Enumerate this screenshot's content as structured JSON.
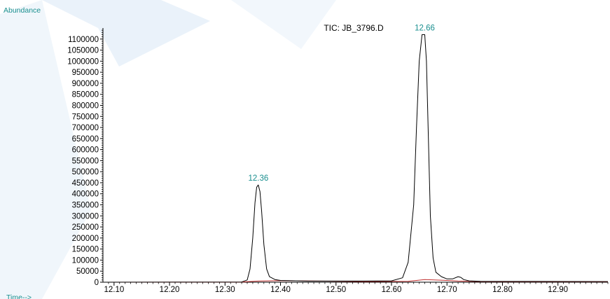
{
  "chart_data": {
    "type": "line",
    "title": "TIC: JB_3796.D",
    "ylabel": "Abundance",
    "xlabel": "Time-->",
    "xlim": [
      12.08,
      12.99
    ],
    "ylim": [
      0,
      1150000
    ],
    "x_ticks": [
      "12.10",
      "12.20",
      "12.30",
      "12.40",
      "12.50",
      "12.60",
      "12.70",
      "12.80",
      "12.90"
    ],
    "y_ticks": [
      "0",
      "50000",
      "100000",
      "150000",
      "200000",
      "250000",
      "300000",
      "350000",
      "400000",
      "450000",
      "500000",
      "550000",
      "600000",
      "650000",
      "700000",
      "750000",
      "800000",
      "850000",
      "900000",
      "950000",
      "1000000",
      "1050000",
      "1100000"
    ],
    "series": [
      {
        "color": "#000000",
        "x": [
          12.08,
          12.33,
          12.34,
          12.345,
          12.35,
          12.354,
          12.357,
          12.36,
          12.363,
          12.366,
          12.37,
          12.375,
          12.38,
          12.39,
          12.4,
          12.45,
          12.55,
          12.6,
          12.62,
          12.63,
          12.64,
          12.645,
          12.65,
          12.655,
          12.66,
          12.663,
          12.666,
          12.67,
          12.675,
          12.68,
          12.69,
          12.7,
          12.71,
          12.72,
          12.725,
          12.73,
          12.74,
          12.76,
          12.99
        ],
        "y": [
          0,
          1000,
          10000,
          60000,
          200000,
          360000,
          430000,
          440000,
          410000,
          320000,
          170000,
          60000,
          25000,
          12000,
          8000,
          5000,
          5000,
          6000,
          20000,
          90000,
          350000,
          700000,
          1000000,
          1120000,
          1120000,
          1000000,
          700000,
          300000,
          110000,
          45000,
          25000,
          15000,
          15000,
          25000,
          22000,
          12000,
          6000,
          4000,
          3000
        ]
      },
      {
        "color": "#c03030",
        "x": [
          12.08,
          12.33,
          12.36,
          12.4,
          12.55,
          12.63,
          12.66,
          12.7,
          12.72,
          12.76,
          12.99
        ],
        "y": [
          0,
          500,
          5000,
          7000,
          3000,
          4000,
          12000,
          8000,
          5000,
          3000,
          2000
        ]
      }
    ],
    "annotations": [
      {
        "label": "12.36",
        "x": 12.36,
        "y": 440000
      },
      {
        "label": "12.66",
        "x": 12.66,
        "y": 1120000
      }
    ]
  }
}
